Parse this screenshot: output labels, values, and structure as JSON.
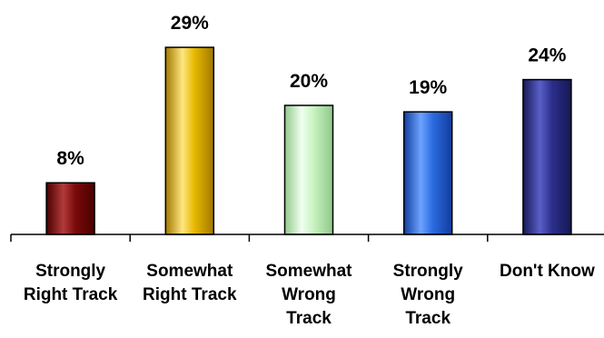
{
  "chart_data": {
    "type": "bar",
    "categories": [
      [
        "Strongly",
        "Right Track"
      ],
      [
        "Somewhat",
        "Right Track"
      ],
      [
        "Somewhat",
        "Wrong",
        "Track"
      ],
      [
        "Strongly",
        "Wrong",
        "Track"
      ],
      [
        "Don't Know"
      ]
    ],
    "values": [
      8,
      29,
      20,
      19,
      24
    ],
    "data_labels": [
      "8%",
      "29%",
      "20%",
      "19%",
      "24%"
    ],
    "colors": [
      {
        "base": "#7a0a0a",
        "light": "#b23a3a",
        "dark": "#4a0000"
      },
      {
        "base": "#e6b800",
        "light": "#ffe680",
        "dark": "#a07800"
      },
      {
        "base": "#c8f2c0",
        "light": "#f0fff0",
        "dark": "#8fc88a"
      },
      {
        "base": "#2a6be0",
        "light": "#6da3ff",
        "dark": "#123c9c"
      },
      {
        "base": "#2c2f8a",
        "light": "#5a5fc8",
        "dark": "#151855"
      }
    ],
    "ylim": [
      0,
      30
    ],
    "grid": false,
    "title": "",
    "xlabel": "",
    "ylabel": ""
  }
}
